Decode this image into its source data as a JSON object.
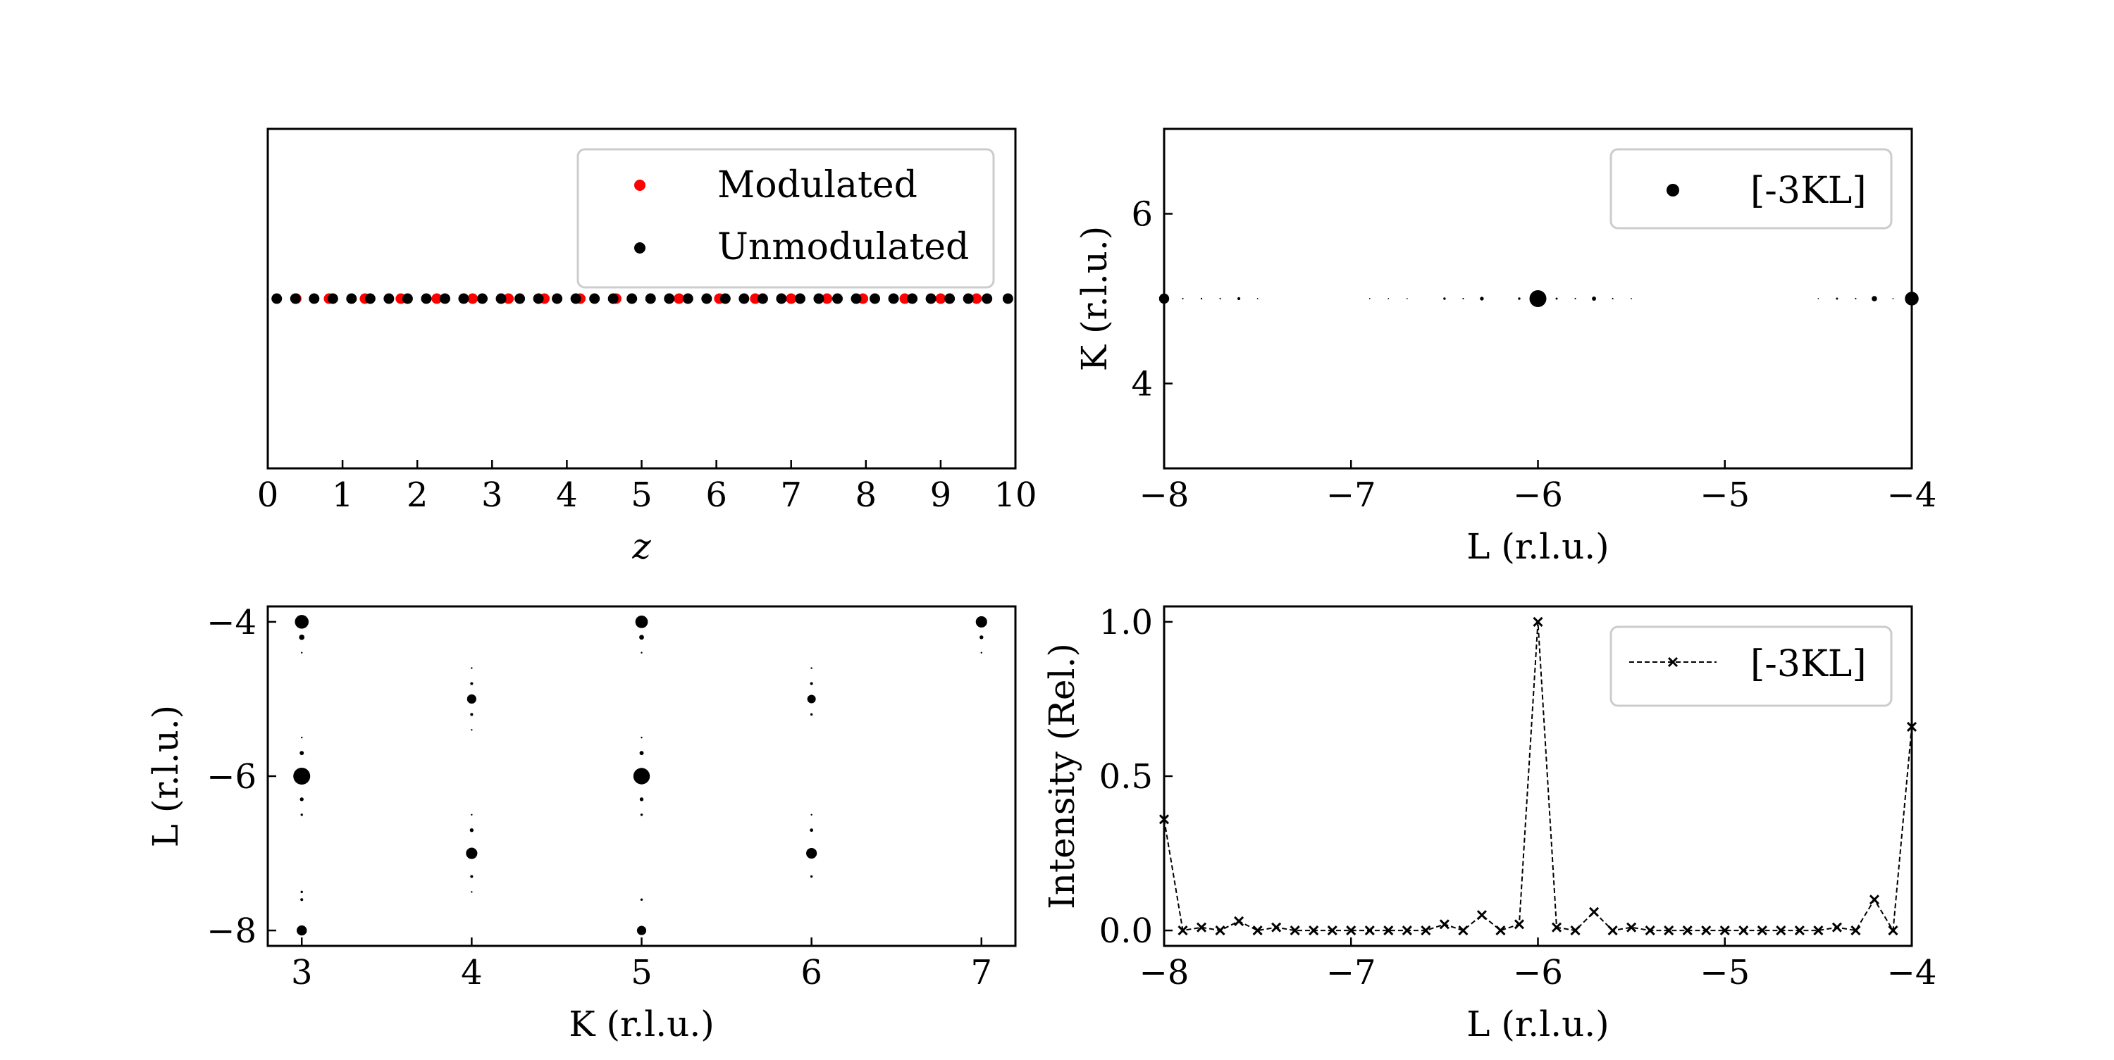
{
  "chart_data": [
    {
      "id": "tl",
      "type": "scatter",
      "xlabel": "z",
      "ylabel": "",
      "xlim": [
        0,
        10
      ],
      "ylim": [
        0,
        2
      ],
      "xticks": [
        0,
        1,
        2,
        3,
        4,
        5,
        6,
        7,
        8,
        9,
        10
      ],
      "yticks": [],
      "legend": {
        "position": "top-right",
        "entries": [
          "Modulated",
          "Unmodulated"
        ]
      },
      "series": [
        {
          "name": "Modulated",
          "color": "#ff0000",
          "points": [
            [
              0.38,
              1
            ],
            [
              0.82,
              1
            ],
            [
              1.3,
              1
            ],
            [
              1.78,
              1
            ],
            [
              2.26,
              1
            ],
            [
              2.74,
              1
            ],
            [
              3.22,
              1
            ],
            [
              3.7,
              1
            ],
            [
              4.18,
              1
            ],
            [
              4.66,
              1
            ],
            [
              5.5,
              1
            ],
            [
              6.04,
              1
            ],
            [
              6.52,
              1
            ],
            [
              7.0,
              1
            ],
            [
              7.48,
              1
            ],
            [
              7.96,
              1
            ],
            [
              8.52,
              1
            ],
            [
              9.0,
              1
            ],
            [
              9.48,
              1
            ]
          ]
        },
        {
          "name": "Unmodulated",
          "color": "#000000",
          "points": [
            [
              0.12,
              1
            ],
            [
              0.37,
              1
            ],
            [
              0.62,
              1
            ],
            [
              0.87,
              1
            ],
            [
              1.12,
              1
            ],
            [
              1.37,
              1
            ],
            [
              1.62,
              1
            ],
            [
              1.87,
              1
            ],
            [
              2.12,
              1
            ],
            [
              2.37,
              1
            ],
            [
              2.62,
              1
            ],
            [
              2.87,
              1
            ],
            [
              3.12,
              1
            ],
            [
              3.37,
              1
            ],
            [
              3.62,
              1
            ],
            [
              3.87,
              1
            ],
            [
              4.12,
              1
            ],
            [
              4.37,
              1
            ],
            [
              4.62,
              1
            ],
            [
              4.87,
              1
            ],
            [
              5.12,
              1
            ],
            [
              5.37,
              1
            ],
            [
              5.62,
              1
            ],
            [
              5.87,
              1
            ],
            [
              6.12,
              1
            ],
            [
              6.37,
              1
            ],
            [
              6.62,
              1
            ],
            [
              6.87,
              1
            ],
            [
              7.12,
              1
            ],
            [
              7.37,
              1
            ],
            [
              7.62,
              1
            ],
            [
              7.87,
              1
            ],
            [
              8.12,
              1
            ],
            [
              8.37,
              1
            ],
            [
              8.62,
              1
            ],
            [
              8.87,
              1
            ],
            [
              9.12,
              1
            ],
            [
              9.37,
              1
            ],
            [
              9.62,
              1
            ],
            [
              9.9,
              1
            ]
          ]
        }
      ]
    },
    {
      "id": "tr",
      "type": "scatter",
      "xlabel": "L (r.l.u.)",
      "ylabel": "K (r.l.u.)",
      "xlim": [
        -8,
        -4
      ],
      "ylim": [
        3,
        7
      ],
      "xticks": [
        -8,
        -7,
        -6,
        -5,
        -4
      ],
      "xtick_labels": [
        "−8",
        "−7",
        "−6",
        "−5",
        "−4"
      ],
      "yticks": [
        4,
        6
      ],
      "ytick_labels": [
        "4",
        "6"
      ],
      "legend": {
        "position": "top-right",
        "entries": [
          "[-3KL]"
        ]
      },
      "series": [
        {
          "name": "[-3KL]",
          "color": "#000000",
          "points": [
            [
              -8,
              5,
              0.36
            ],
            [
              -7.9,
              5,
              0.008
            ],
            [
              -7.8,
              5,
              0.01
            ],
            [
              -7.7,
              5,
              0.008
            ],
            [
              -7.6,
              5,
              0.03
            ],
            [
              -7.5,
              5,
              0.006
            ],
            [
              -6.9,
              5,
              0.003
            ],
            [
              -6.8,
              5,
              0.003
            ],
            [
              -6.7,
              5,
              0.005
            ],
            [
              -6.5,
              5,
              0.02
            ],
            [
              -6.4,
              5,
              0.008
            ],
            [
              -6.3,
              5,
              0.05
            ],
            [
              -6.1,
              5,
              0.02
            ],
            [
              -6,
              5,
              1.0
            ],
            [
              -5.9,
              5,
              0.015
            ],
            [
              -5.8,
              5,
              0.008
            ],
            [
              -5.7,
              5,
              0.06
            ],
            [
              -5.6,
              5,
              0.008
            ],
            [
              -5.5,
              5,
              0.005
            ],
            [
              -4.5,
              5,
              0.005
            ],
            [
              -4.4,
              5,
              0.015
            ],
            [
              -4.3,
              5,
              0.008
            ],
            [
              -4.2,
              5,
              0.1
            ],
            [
              -4.1,
              5,
              0.005
            ],
            [
              -4,
              5,
              0.66
            ]
          ]
        }
      ]
    },
    {
      "id": "bl",
      "type": "scatter",
      "xlabel": "K (r.l.u.)",
      "ylabel": "L (r.l.u.)",
      "xlim": [
        2.8,
        7.2
      ],
      "ylim": [
        -8.2,
        -3.8
      ],
      "xticks": [
        3,
        4,
        5,
        6,
        7
      ],
      "yticks": [
        -8,
        -6,
        -4
      ],
      "ytick_labels": [
        "−8",
        "−6",
        "−4"
      ],
      "series": [
        {
          "name": "",
          "color": "#000000",
          "points": [
            [
              3,
              -4,
              0.66
            ],
            [
              3,
              -4.2,
              0.1
            ],
            [
              3,
              -4.4,
              0.01
            ],
            [
              3,
              -5.5,
              0.01
            ],
            [
              3,
              -5.7,
              0.06
            ],
            [
              3,
              -6,
              1.0
            ],
            [
              3,
              -6.3,
              0.05
            ],
            [
              3,
              -6.5,
              0.02
            ],
            [
              3,
              -7.5,
              0.02
            ],
            [
              3,
              -7.6,
              0.03
            ],
            [
              3,
              -8,
              0.36
            ],
            [
              4,
              -4.6,
              0.01
            ],
            [
              4,
              -4.8,
              0.03
            ],
            [
              4,
              -5,
              0.3
            ],
            [
              4,
              -5.2,
              0.03
            ],
            [
              4,
              -5.4,
              0.01
            ],
            [
              4,
              -6.5,
              0.01
            ],
            [
              4,
              -6.7,
              0.05
            ],
            [
              4,
              -7,
              0.45
            ],
            [
              4,
              -7.3,
              0.03
            ],
            [
              4,
              -7.5,
              0.01
            ],
            [
              5,
              -4,
              0.55
            ],
            [
              5,
              -4.2,
              0.08
            ],
            [
              5,
              -4.4,
              0.01
            ],
            [
              5,
              -5.5,
              0.01
            ],
            [
              5,
              -5.7,
              0.06
            ],
            [
              5,
              -6,
              0.95
            ],
            [
              5,
              -6.3,
              0.05
            ],
            [
              5,
              -6.5,
              0.02
            ],
            [
              5,
              -7.6,
              0.02
            ],
            [
              5,
              -8,
              0.3
            ],
            [
              6,
              -4.6,
              0.01
            ],
            [
              6,
              -4.8,
              0.03
            ],
            [
              6,
              -5,
              0.25
            ],
            [
              6,
              -5.2,
              0.02
            ],
            [
              6,
              -6.5,
              0.01
            ],
            [
              6,
              -6.7,
              0.04
            ],
            [
              6,
              -7,
              0.4
            ],
            [
              6,
              -7.3,
              0.02
            ],
            [
              7,
              -4,
              0.45
            ],
            [
              7,
              -4.2,
              0.05
            ],
            [
              7,
              -4.4,
              0.01
            ]
          ]
        }
      ]
    },
    {
      "id": "br",
      "type": "line",
      "xlabel": "L (r.l.u.)",
      "ylabel": "Intensity (Rel.)",
      "xlim": [
        -8,
        -4
      ],
      "ylim": [
        -0.05,
        1.05
      ],
      "xticks": [
        -8,
        -7,
        -6,
        -5,
        -4
      ],
      "xtick_labels": [
        "−8",
        "−7",
        "−6",
        "−5",
        "−4"
      ],
      "yticks": [
        0,
        0.5,
        1
      ],
      "ytick_labels": [
        "0.0",
        "0.5",
        "1.0"
      ],
      "legend": {
        "position": "top-right",
        "entries": [
          "[-3KL]"
        ]
      },
      "series": [
        {
          "name": "[-3KL]",
          "color": "#000000",
          "x": [
            -8,
            -7.9,
            -7.8,
            -7.7,
            -7.6,
            -7.5,
            -7.4,
            -7.3,
            -7.2,
            -7.1,
            -7.0,
            -6.9,
            -6.8,
            -6.7,
            -6.6,
            -6.5,
            -6.4,
            -6.3,
            -6.2,
            -6.1,
            -6.0,
            -5.9,
            -5.8,
            -5.7,
            -5.6,
            -5.5,
            -5.4,
            -5.3,
            -5.2,
            -5.1,
            -5.0,
            -4.9,
            -4.8,
            -4.7,
            -4.6,
            -4.5,
            -4.4,
            -4.3,
            -4.2,
            -4.1,
            -4.0
          ],
          "y": [
            0.36,
            0.0,
            0.01,
            0.0,
            0.03,
            0.0,
            0.01,
            0.0,
            0.0,
            0.0,
            0.0,
            0.0,
            0.0,
            0.0,
            0.0,
            0.02,
            0.0,
            0.05,
            0.0,
            0.02,
            1.0,
            0.01,
            0.0,
            0.06,
            0.0,
            0.01,
            0.0,
            0.0,
            0.0,
            0.0,
            0.0,
            0.0,
            0.0,
            0.0,
            0.0,
            0.0,
            0.01,
            0.0,
            0.1,
            0.0,
            0.66
          ]
        }
      ]
    }
  ]
}
